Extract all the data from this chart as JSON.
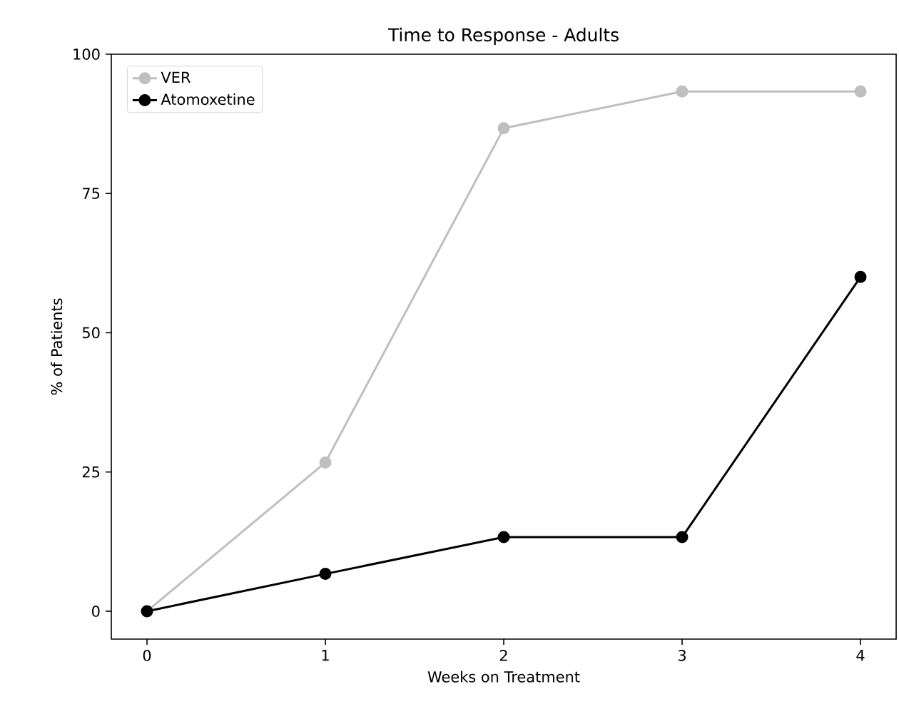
{
  "chart_data": {
    "type": "line",
    "title": "Time to Response - Adults",
    "xlabel": "Weeks on Treatment",
    "ylabel": "% of Patients",
    "x": [
      0,
      1,
      2,
      3,
      4
    ],
    "series": [
      {
        "name": "VER",
        "color": "#bfbfbf",
        "values": [
          0,
          26.7,
          86.7,
          93.3,
          93.3
        ]
      },
      {
        "name": "Atomoxetine",
        "color": "#000000",
        "values": [
          0,
          6.7,
          13.3,
          13.3,
          60
        ]
      }
    ],
    "xlim": [
      -0.2,
      4.2
    ],
    "ylim": [
      -5,
      100
    ],
    "xticks": [
      0,
      1,
      2,
      3,
      4
    ],
    "yticks": [
      0,
      25,
      50,
      75,
      100
    ],
    "legend": "top left",
    "marker": "circle",
    "line_style": "solid",
    "grid": false
  }
}
